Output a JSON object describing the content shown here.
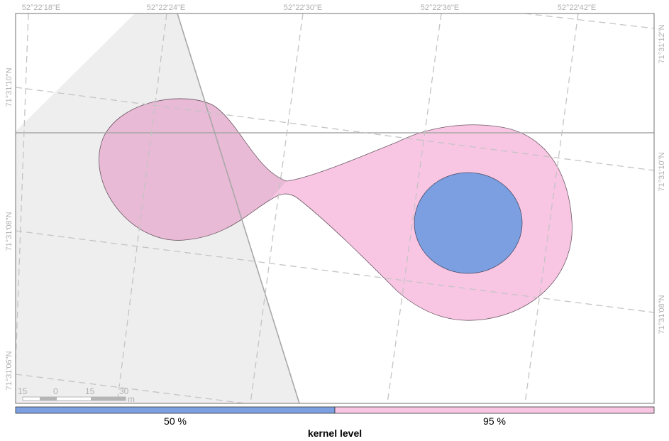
{
  "map": {
    "top_labels": [
      "52°22'18\"E",
      "52°22'24\"E",
      "52°22'30\"E",
      "52°22'36\"E",
      "52°22'42\"E"
    ],
    "left_labels": [
      "71°31'10\"N",
      "71°31'08\"N",
      "71°31'06\"N"
    ],
    "right_labels": [
      "71°31'12\"N",
      "71°31'10\"N",
      "71°31'08\"N"
    ],
    "scale_bar": {
      "ticks": [
        "15",
        "0",
        "15",
        "30"
      ],
      "unit": "m"
    }
  },
  "legend": {
    "title": "kernel level",
    "items": [
      {
        "label": "50 %",
        "color": "#7b9fe0"
      },
      {
        "label": "95 %",
        "color": "#f8c6e3"
      }
    ]
  }
}
